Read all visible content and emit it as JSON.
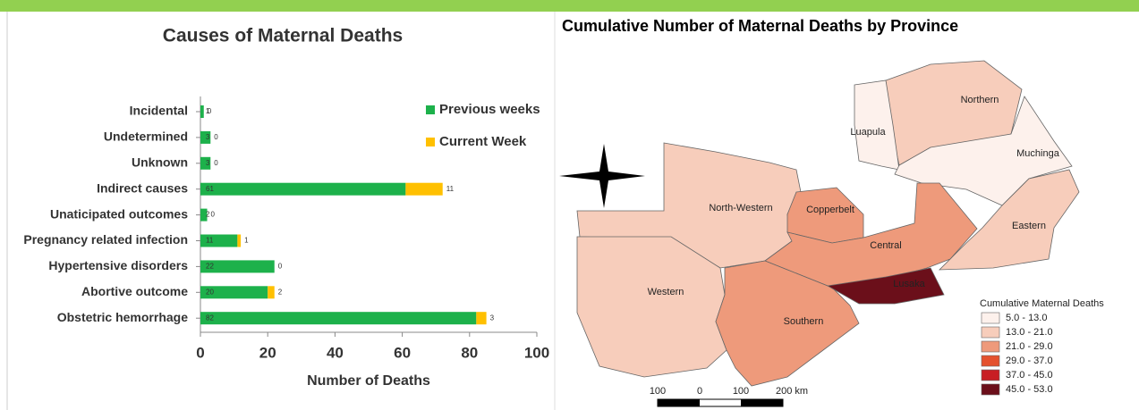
{
  "chart_data": {
    "type": "stacked-bar-horizontal",
    "title": "Causes of Maternal Deaths",
    "x_label": "Number of Deaths",
    "categories": [
      "Incidental",
      "Undetermined",
      "Unknown",
      "Indirect causes",
      "Unaticipated outcomes",
      "Pregnancy related infection",
      "Hypertensive disorders",
      "Abortive outcome",
      "Obstetric  hemorrhage"
    ],
    "series": [
      {
        "name": "Previous weeks",
        "color": "#1db14b",
        "values": [
          1,
          3,
          3,
          61,
          2,
          11,
          22,
          20,
          82
        ]
      },
      {
        "name": "Current Week",
        "color": "#ffc000",
        "values": [
          0,
          0,
          0,
          11,
          0,
          1,
          0,
          2,
          3
        ]
      }
    ],
    "xlim": [
      0,
      100
    ],
    "xticks": [
      0,
      20,
      40,
      60,
      80,
      100
    ],
    "legend": "upper right"
  },
  "map": {
    "title": "Cumulative Number of Maternal Deaths by Province",
    "provinces": [
      {
        "name": "Northern",
        "color": "#f7cdbb"
      },
      {
        "name": "Luapula",
        "color": "#fdf1ec"
      },
      {
        "name": "Muchinga",
        "color": "#fdf1ec"
      },
      {
        "name": "Eastern",
        "color": "#f7cdbb"
      },
      {
        "name": "North-Western",
        "color": "#f7cdbb"
      },
      {
        "name": "Western",
        "color": "#f7cdbb"
      },
      {
        "name": "Copperbelt",
        "color": "#ee9a7b"
      },
      {
        "name": "Central",
        "color": "#ee9a7b"
      },
      {
        "name": "Southern",
        "color": "#ee9a7b"
      },
      {
        "name": "Lusaka",
        "color": "#6b0f1a"
      }
    ],
    "legend_title": "Cumulative Maternal Deaths",
    "legend": [
      {
        "label": "5.0 - 13.0",
        "color": "#fdf1ec"
      },
      {
        "label": "13.0 - 21.0",
        "color": "#f7cdbb"
      },
      {
        "label": "21.0 - 29.0",
        "color": "#ee9a7b"
      },
      {
        "label": "29.0 - 37.0",
        "color": "#e4512e"
      },
      {
        "label": "37.0 - 45.0",
        "color": "#c81e24"
      },
      {
        "label": "45.0 - 53.0",
        "color": "#6b0f1a"
      }
    ],
    "scale_labels": [
      "100",
      "0",
      "100",
      "200 km"
    ]
  }
}
